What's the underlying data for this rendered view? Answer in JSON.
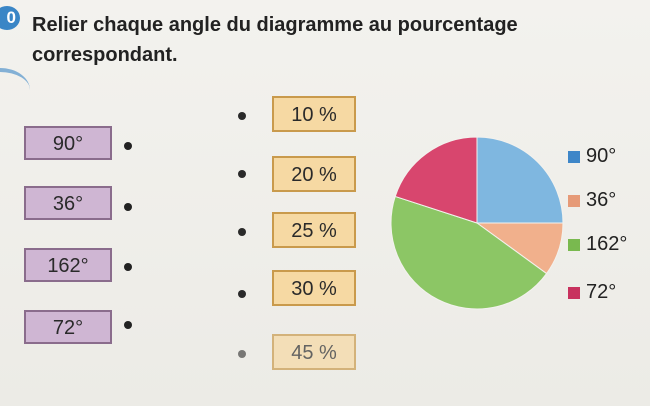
{
  "exercise": {
    "number": "0",
    "instruction": "Relier chaque angle du diagramme au pourcentage correspondant."
  },
  "angles": [
    "90°",
    "36°",
    "162°",
    "72°"
  ],
  "percentages": [
    "10 %",
    "20 %",
    "25 %",
    "30 %",
    "45 %"
  ],
  "chart_data": {
    "type": "pie",
    "slices": [
      {
        "label": "90°",
        "value": 90,
        "color": "#7fb7e0"
      },
      {
        "label": "36°",
        "value": 36,
        "color": "#f1b08c"
      },
      {
        "label": "162°",
        "value": 162,
        "color": "#8cc665"
      },
      {
        "label": "72°",
        "value": 72,
        "color": "#d8466e"
      }
    ],
    "legend": [
      {
        "label": "90°",
        "color": "#3e86c8"
      },
      {
        "label": "36°",
        "color": "#e69a78"
      },
      {
        "label": "162°",
        "color": "#79b94f"
      },
      {
        "label": "72°",
        "color": "#c8325e"
      }
    ],
    "legend_position": "right"
  }
}
